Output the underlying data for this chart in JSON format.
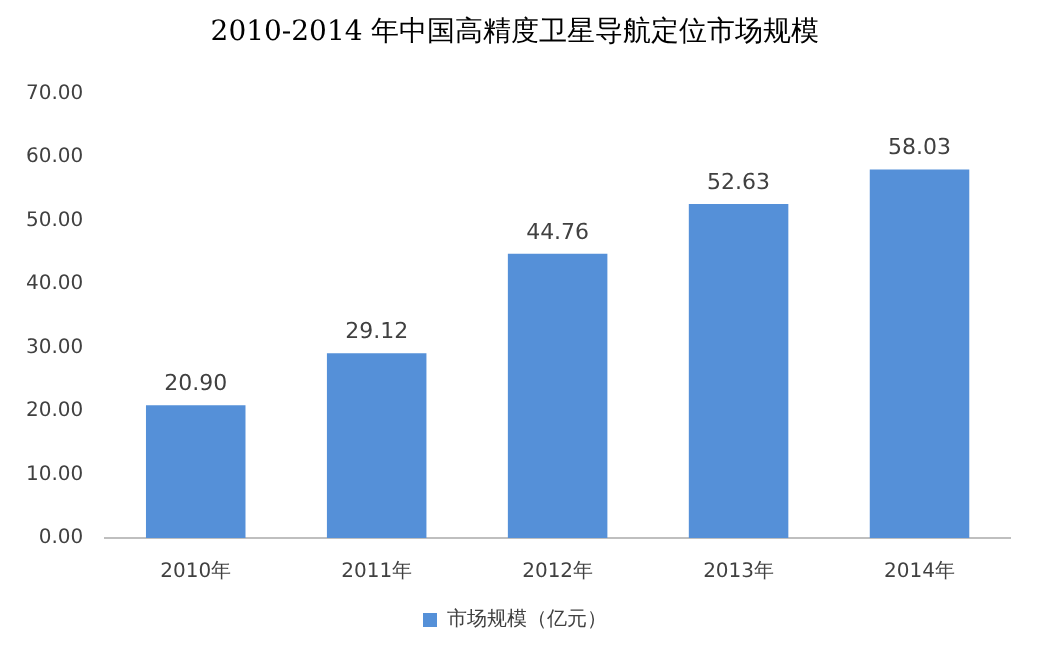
{
  "chart_data": {
    "type": "bar",
    "title": "2010-2014 年中国高精度卫星导航定位市场规模",
    "categories": [
      "2010年",
      "2011年",
      "2012年",
      "2013年",
      "2014年"
    ],
    "series": [
      {
        "name": "市场规模（亿元）",
        "color": "#5590d8",
        "values": [
          20.9,
          29.12,
          44.76,
          52.63,
          58.03
        ]
      }
    ],
    "ylim": [
      0,
      70
    ],
    "yticks": [
      {
        "value": 0,
        "label": "0.00"
      },
      {
        "value": 10,
        "label": "10.00"
      },
      {
        "value": 20,
        "label": "20.00"
      },
      {
        "value": 30,
        "label": "30.00"
      },
      {
        "value": 40,
        "label": "40.00"
      },
      {
        "value": 50,
        "label": "50.00"
      },
      {
        "value": 60,
        "label": "60.00"
      },
      {
        "value": 70,
        "label": "70.00"
      }
    ],
    "value_labels": [
      "20.90",
      "29.12",
      "44.76",
      "52.63",
      "58.03"
    ],
    "grid": false,
    "legend": "bottom"
  }
}
